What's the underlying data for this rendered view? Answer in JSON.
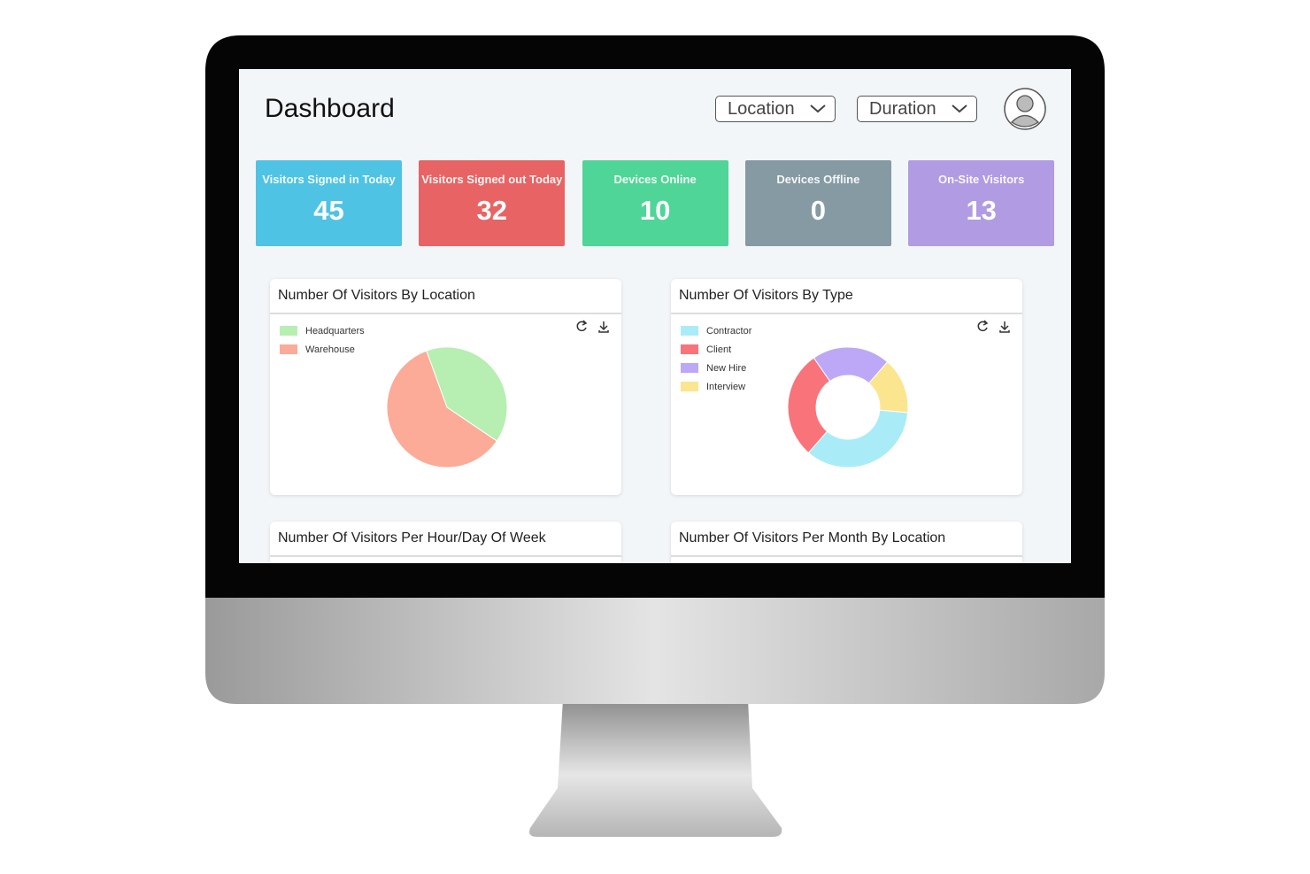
{
  "header": {
    "title": "Dashboard",
    "filters": [
      "Location",
      "Duration"
    ]
  },
  "stats": [
    {
      "label": "Visitors Signed in Today",
      "value": 45,
      "color": "#4fc3e3"
    },
    {
      "label": "Visitors Signed out Today",
      "value": 32,
      "color": "#e86363"
    },
    {
      "label": "Devices Online",
      "value": 10,
      "color": "#4fd597"
    },
    {
      "label": "Devices Offline",
      "value": 0,
      "color": "#859aa3"
    },
    {
      "label": "On-Site Visitors",
      "value": 13,
      "color": "#b19be3"
    }
  ],
  "chart_data": [
    {
      "type": "pie",
      "title": "Number Of Visitors By Location",
      "donut": false,
      "categories": [
        "Headquarters",
        "Warehouse"
      ],
      "values": [
        40,
        60
      ],
      "colors": [
        "#b6efb1",
        "#fbab97"
      ]
    },
    {
      "type": "pie",
      "title": "Number Of Visitors By Type",
      "donut": true,
      "categories": [
        "Contractor",
        "Client",
        "New Hire",
        "Interview"
      ],
      "values": [
        35,
        29,
        21,
        15
      ],
      "colors": [
        "#a9ecf8",
        "#f9737a",
        "#bca8f7",
        "#fbe68f"
      ]
    }
  ],
  "panels": [
    "Number Of Visitors Per Hour/Day Of Week",
    "Number Of Visitors Per Month By Location"
  ]
}
